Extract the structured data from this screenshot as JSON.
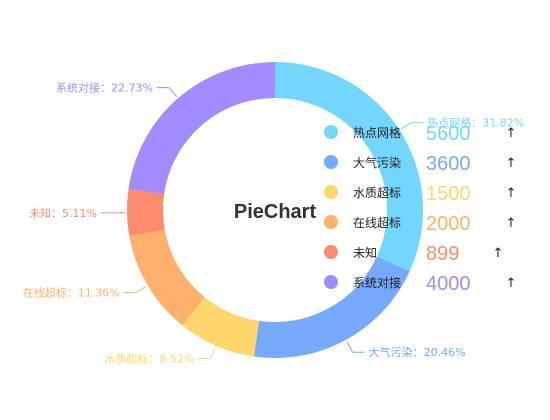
{
  "chart_data": {
    "type": "pie",
    "variant": "donut",
    "title": "PieChart",
    "slices": [
      {
        "name": "热点网格",
        "value": 5600,
        "label": "热点网格：31.82%",
        "color": "#72d6ff"
      },
      {
        "name": "大气污染",
        "value": 3600,
        "label": "大气污染：20.46%",
        "color": "#74a9fc"
      },
      {
        "name": "水质超标",
        "value": 1500,
        "label": "水质超标：8.52%",
        "color": "#ffd66b"
      },
      {
        "name": "在线超标",
        "value": 2000,
        "label": "在线超标：11.36%",
        "color": "#ffb06a"
      },
      {
        "name": "未知",
        "value": 899,
        "label": "未知：5.11%",
        "color": "#ff8b6e"
      },
      {
        "name": "系统对接",
        "value": 4000,
        "label": "系统对接：22.73%",
        "color": "#a28bfe"
      }
    ],
    "legend": {
      "placement": "right",
      "trend_icon": "arrow-up-icon",
      "arrow_glyph": "↑"
    }
  }
}
